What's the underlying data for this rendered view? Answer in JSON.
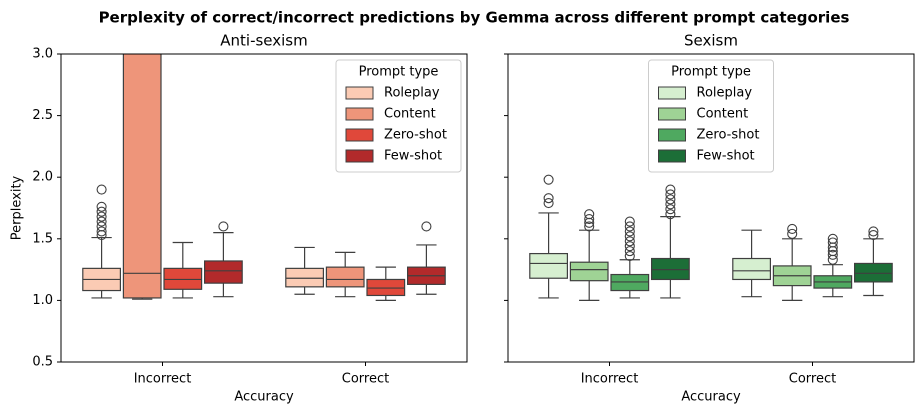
{
  "title": "Perplexity of correct/incorrect predictions by Gemma across different prompt categories",
  "chart_data": [
    {
      "type": "box",
      "title": "Anti-sexism",
      "xlabel": "Accuracy",
      "ylabel": "Perplexity",
      "categories": [
        "Incorrect",
        "Correct"
      ],
      "ylim": [
        0.5,
        3.0
      ],
      "yticks": [
        0.5,
        {
          "value": 1,
          "label": "1.0"
        },
        1.5,
        {
          "value": 2,
          "label": "2.0"
        },
        2.5,
        {
          "value": 3,
          "label": "3.0"
        }
      ],
      "ytick_labels": true,
      "legend_title": "Prompt type",
      "legend_loc": "upper right",
      "series": [
        {
          "name": "Roleplay",
          "color": "#fbcbb4",
          "values": [
            {
              "whislo": 1.02,
              "q1": 1.08,
              "med": 1.17,
              "q3": 1.26,
              "whishi": 1.51,
              "fliers": [
                1.53,
                1.56,
                1.6,
                1.64,
                1.68,
                1.72,
                1.76,
                1.9
              ]
            },
            {
              "whislo": 1.05,
              "q1": 1.11,
              "med": 1.18,
              "q3": 1.26,
              "whishi": 1.43,
              "fliers": []
            }
          ]
        },
        {
          "name": "Content",
          "color": "#ee957a",
          "values": [
            {
              "whislo": 1.01,
              "q1": 1.02,
              "med": 1.22,
              "q3": 3.2,
              "whishi": 3.5,
              "fliers": []
            },
            {
              "whislo": 1.03,
              "q1": 1.11,
              "med": 1.17,
              "q3": 1.27,
              "whishi": 1.39,
              "fliers": []
            }
          ]
        },
        {
          "name": "Zero-shot",
          "color": "#e0483a",
          "values": [
            {
              "whislo": 1.02,
              "q1": 1.09,
              "med": 1.17,
              "q3": 1.26,
              "whishi": 1.47,
              "fliers": []
            },
            {
              "whislo": 1.0,
              "q1": 1.04,
              "med": 1.1,
              "q3": 1.17,
              "whishi": 1.27,
              "fliers": []
            }
          ]
        },
        {
          "name": "Few-shot",
          "color": "#b22a2b",
          "values": [
            {
              "whislo": 1.03,
              "q1": 1.14,
              "med": 1.24,
              "q3": 1.32,
              "whishi": 1.55,
              "fliers": [
                1.6
              ]
            },
            {
              "whislo": 1.05,
              "q1": 1.13,
              "med": 1.2,
              "q3": 1.27,
              "whishi": 1.45,
              "fliers": [
                1.6
              ]
            }
          ]
        }
      ]
    },
    {
      "type": "box",
      "title": "Sexism",
      "xlabel": "Accuracy",
      "categories": [
        "Incorrect",
        "Correct"
      ],
      "ylim": [
        0.5,
        3.0
      ],
      "yticks": [
        0.5,
        1,
        1.5,
        2,
        2.5,
        3
      ],
      "ytick_labels": false,
      "legend_title": "Prompt type",
      "legend_loc": "upper center",
      "series": [
        {
          "name": "Roleplay",
          "color": "#d6efd0",
          "values": [
            {
              "whislo": 1.02,
              "q1": 1.18,
              "med": 1.3,
              "q3": 1.38,
              "whishi": 1.71,
              "fliers": [
                1.79,
                1.83,
                1.98
              ]
            },
            {
              "whislo": 1.03,
              "q1": 1.17,
              "med": 1.24,
              "q3": 1.34,
              "whishi": 1.57,
              "fliers": []
            }
          ]
        },
        {
          "name": "Content",
          "color": "#9fd395",
          "values": [
            {
              "whislo": 1.0,
              "q1": 1.16,
              "med": 1.25,
              "q3": 1.31,
              "whishi": 1.57,
              "fliers": [
                1.6,
                1.63,
                1.66,
                1.7
              ]
            },
            {
              "whislo": 1.0,
              "q1": 1.12,
              "med": 1.2,
              "q3": 1.28,
              "whishi": 1.5,
              "fliers": [
                1.54,
                1.58
              ]
            }
          ]
        },
        {
          "name": "Zero-shot",
          "color": "#4fa960",
          "values": [
            {
              "whislo": 1.02,
              "q1": 1.08,
              "med": 1.15,
              "q3": 1.21,
              "whishi": 1.33,
              "fliers": [
                1.36,
                1.4,
                1.44,
                1.48,
                1.52,
                1.56,
                1.6,
                1.64
              ]
            },
            {
              "whislo": 1.03,
              "q1": 1.1,
              "med": 1.15,
              "q3": 1.2,
              "whishi": 1.29,
              "fliers": [
                1.33,
                1.37,
                1.4,
                1.43,
                1.47,
                1.5
              ]
            }
          ]
        },
        {
          "name": "Few-shot",
          "color": "#1c6e37",
          "values": [
            {
              "whislo": 1.02,
              "q1": 1.17,
              "med": 1.25,
              "q3": 1.34,
              "whishi": 1.68,
              "fliers": [
                1.7,
                1.74,
                1.78,
                1.82,
                1.86,
                1.9
              ]
            },
            {
              "whislo": 1.04,
              "q1": 1.15,
              "med": 1.22,
              "q3": 1.3,
              "whishi": 1.5,
              "fliers": [
                1.53,
                1.56
              ]
            }
          ]
        }
      ]
    }
  ]
}
